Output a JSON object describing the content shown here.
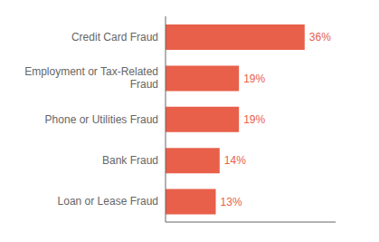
{
  "chart_data": {
    "type": "bar",
    "orientation": "horizontal",
    "categories": [
      "Loan or Lease Fraud",
      "Bank Fraud",
      "Phone or Utilities Fraud",
      "Employment or Tax-Related\nFraud",
      "Credit Card Fraud"
    ],
    "values": [
      13,
      14,
      19,
      19,
      36
    ],
    "value_labels": [
      "13%",
      "14%",
      "19%",
      "19%",
      "36%"
    ],
    "data_labels": true,
    "color": "#e8604a",
    "xlim": [
      0,
      44
    ],
    "tick_labels": "y",
    "grid": false
  }
}
